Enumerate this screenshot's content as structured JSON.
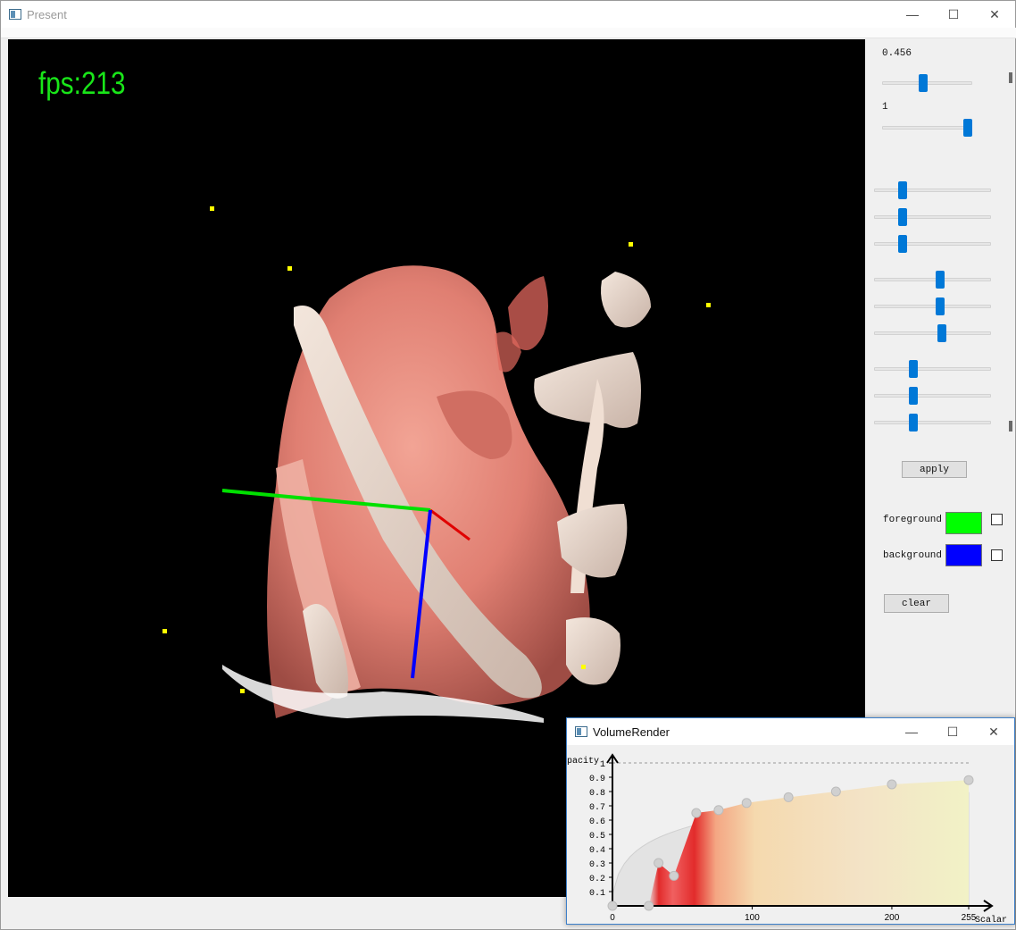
{
  "main_window": {
    "title": "Present",
    "buttons": {
      "minimize": "—",
      "maximize": "☐",
      "close": "✕"
    }
  },
  "viewport": {
    "fps_label": "fps:213",
    "fps_color": "#19e619"
  },
  "panel": {
    "labels": {
      "first": "0.456",
      "second": "1"
    },
    "sliders": {
      "s1": 0.456,
      "s2": 1,
      "groups": [
        [
          0.22,
          0.22,
          0.22
        ],
        [
          0.57,
          0.57,
          0.59
        ],
        [
          0.32,
          0.32,
          0.32
        ]
      ]
    },
    "apply_label": "apply",
    "foreground": {
      "label": "foreground",
      "color": "#00ff00",
      "checked": false
    },
    "background": {
      "label": "background",
      "color": "#0000ff",
      "checked": false
    },
    "clear_label": "clear"
  },
  "volume_render_window": {
    "title": "VolumeRender",
    "buttons": {
      "minimize": "—",
      "maximize": "☐",
      "close": "✕"
    }
  },
  "chart_data": {
    "type": "area",
    "ylabel": "pacity",
    "xlabel": "Scalar",
    "x_ticks": [
      "0",
      "100",
      "200",
      "255"
    ],
    "y_ticks": [
      "0.1",
      "0.2",
      "0.3",
      "0.4",
      "0.5",
      "0.6",
      "0.7",
      "0.8",
      "0.9",
      "1"
    ],
    "xlim": [
      0,
      255
    ],
    "ylim": [
      0,
      1
    ],
    "reference_line_y": 1,
    "control_points": [
      {
        "x": 0,
        "y": 0
      },
      {
        "x": 26,
        "y": 0
      },
      {
        "x": 33,
        "y": 0.3
      },
      {
        "x": 44,
        "y": 0.21
      },
      {
        "x": 60,
        "y": 0.65
      },
      {
        "x": 76,
        "y": 0.67
      },
      {
        "x": 96,
        "y": 0.72
      },
      {
        "x": 126,
        "y": 0.76
      },
      {
        "x": 160,
        "y": 0.8
      },
      {
        "x": 200,
        "y": 0.85
      },
      {
        "x": 255,
        "y": 0.88
      }
    ]
  }
}
